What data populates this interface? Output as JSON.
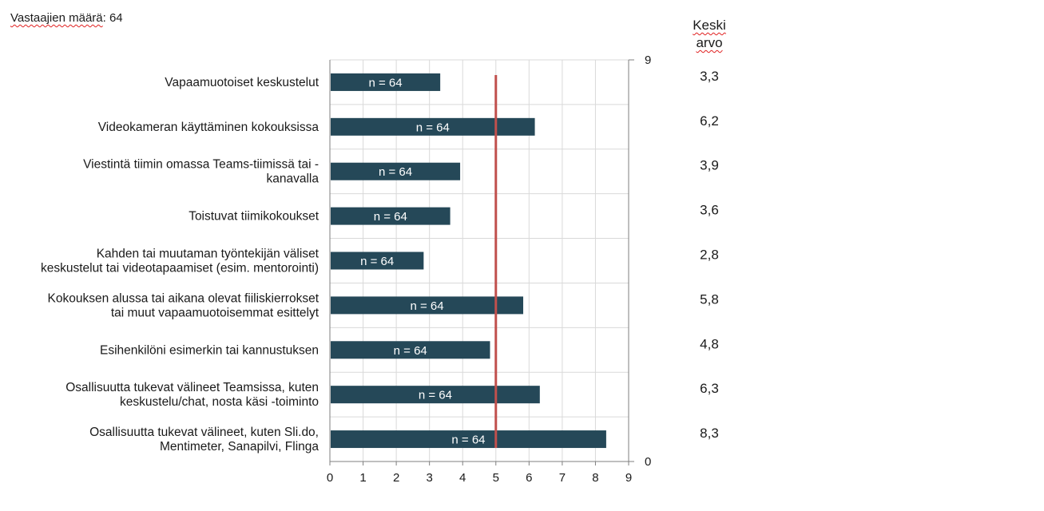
{
  "respondents": {
    "label_word": "Vastaajien määrä",
    "label_rest": ": 64"
  },
  "mean_header": {
    "line1": "Keski",
    "line2": "arvo"
  },
  "colors": {
    "bar": "#254858",
    "reference_line": "#c0504d",
    "grid": "#d9d9d9",
    "axis": "#7f7f7f"
  },
  "chart_data": {
    "type": "bar",
    "orientation": "horizontal",
    "title": "",
    "xlabel": "",
    "ylabel": "",
    "xlim": [
      0,
      9
    ],
    "x_ticks": [
      "0",
      "1",
      "2",
      "3",
      "4",
      "5",
      "6",
      "7",
      "8",
      "9"
    ],
    "secondary_axis_ticks": [
      "9",
      "0"
    ],
    "grid": true,
    "reference_line_value": 5,
    "categories": [
      [
        "Vapaamuotoiset keskustelut"
      ],
      [
        "Videokameran käyttäminen kokouksissa"
      ],
      [
        "Viestintä tiimin omassa Teams-tiimissä tai -",
        "kanavalla"
      ],
      [
        "Toistuvat tiimikokoukset"
      ],
      [
        "Kahden tai muutaman työntekijän väliset",
        "keskustelut tai videotapaamiset (esim. mentorointi)"
      ],
      [
        "Kokouksen alussa tai aikana olevat fiiliskierrokset",
        "tai muut vapaamuotoisemmat esittelyt"
      ],
      [
        "Esihenkilöni esimerkin tai kannustuksen"
      ],
      [
        "Osallisuutta tukevat välineet Teamsissa, kuten",
        "keskustelu/chat, nosta käsi -toiminto"
      ],
      [
        "Osallisuutta tukevat välineet, kuten Sli.do,",
        "Mentimeter, Sanapilvi, Flinga"
      ]
    ],
    "values": [
      3.3,
      6.15,
      3.9,
      3.6,
      2.8,
      5.8,
      4.8,
      6.3,
      8.3
    ],
    "bar_labels": [
      "n = 64",
      "n = 64",
      "n = 64",
      "n = 64",
      "n = 64",
      "n = 64",
      "n = 64",
      "n = 64",
      "n = 64"
    ],
    "means": [
      "3,3",
      "6,2",
      "3,9",
      "3,6",
      "2,8",
      "5,8",
      "4,8",
      "6,3",
      "8,3"
    ]
  }
}
